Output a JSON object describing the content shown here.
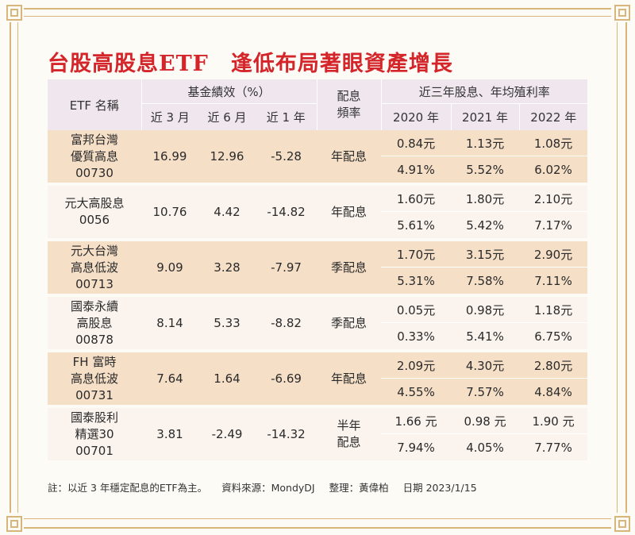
{
  "title": "台股高股息ETF　逢低布局著眼資產增長",
  "headers": {
    "etf_name": "ETF 名稱",
    "performance": "基金績效（%）",
    "frequency": "配息頻率",
    "dividend_group": "近三年股息、年均殖利率",
    "periods": [
      "近 3 月",
      "近 6 月",
      "近 1 年"
    ],
    "years": [
      "2020 年",
      "2021 年",
      "2022 年"
    ]
  },
  "rows": [
    {
      "name_lines": [
        "富邦台灣",
        "優質高息",
        "00730"
      ],
      "perf": [
        "16.99",
        "12.96",
        "-5.28"
      ],
      "freq": "年配息",
      "dividend": [
        "0.84元",
        "1.13元",
        "1.08元"
      ],
      "yield": [
        "4.91%",
        "5.52%",
        "6.02%"
      ]
    },
    {
      "name_lines": [
        "元大高股息",
        "0056"
      ],
      "perf": [
        "10.76",
        "4.42",
        "-14.82"
      ],
      "freq": "年配息",
      "dividend": [
        "1.60元",
        "1.80元",
        "2.10元"
      ],
      "yield": [
        "5.61%",
        "5.42%",
        "7.17%"
      ]
    },
    {
      "name_lines": [
        "元大台灣",
        "高息低波",
        "00713"
      ],
      "perf": [
        "9.09",
        "3.28",
        "-7.97"
      ],
      "freq": "季配息",
      "dividend": [
        "1.70元",
        "3.15元",
        "2.90元"
      ],
      "yield": [
        "5.31%",
        "7.58%",
        "7.11%"
      ]
    },
    {
      "name_lines": [
        "國泰永續",
        "高股息",
        "00878"
      ],
      "perf": [
        "8.14",
        "5.33",
        "-8.82"
      ],
      "freq": "季配息",
      "dividend": [
        "0.05元",
        "0.98元",
        "1.18元"
      ],
      "yield": [
        "0.33%",
        "5.41%",
        "6.75%"
      ]
    },
    {
      "name_lines": [
        "FH 富時",
        "高息低波",
        "00731"
      ],
      "perf": [
        "7.64",
        "1.64",
        "-6.69"
      ],
      "freq": "年配息",
      "dividend": [
        "2.09元",
        "4.30元",
        "2.80元"
      ],
      "yield": [
        "4.55%",
        "7.57%",
        "4.84%"
      ]
    },
    {
      "name_lines": [
        "國泰股利",
        "精選30",
        "00701"
      ],
      "perf": [
        "3.81",
        "-2.49",
        "-14.32"
      ],
      "freq": "半年配息",
      "dividend": [
        "1.66 元",
        "0.98 元",
        "1.90 元"
      ],
      "yield": [
        "7.94%",
        "4.05%",
        "7.77%"
      ]
    }
  ],
  "footnote": {
    "note": "註：以近 3 年穩定配息的ETF為主。",
    "source": "資料來源：MondyDJ",
    "editor": "整理：黃偉柏",
    "date": "日期 2023/1/15"
  },
  "colors": {
    "title": "#d4262a",
    "header_bg": "#efe6ee",
    "band_bg": "#f5dfc7",
    "plain_bg": "#fbf4ee",
    "frame": "#d8b57a"
  }
}
